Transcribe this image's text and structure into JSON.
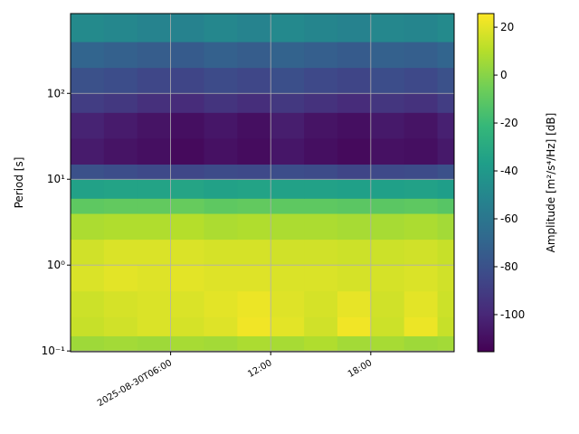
{
  "chart_data": {
    "type": "heatmap",
    "ylabel": "Period [s]",
    "colorbar_label": "Amplitude [m²/s⁴/Hz] [dB]",
    "colormap": "viridis",
    "ylog": true,
    "grid": true,
    "xlim": [
      0,
      23
    ],
    "xticks": [
      {
        "value": 6,
        "label": "2025-08-30T06:00"
      },
      {
        "value": 12,
        "label": "12:00"
      },
      {
        "value": 18,
        "label": "18:00"
      }
    ],
    "ylim": [
      0.098,
      850
    ],
    "yticks": [
      {
        "value": 0.1,
        "label": "10⁻¹"
      },
      {
        "value": 1,
        "label": "10⁰"
      },
      {
        "value": 10,
        "label": "10¹"
      },
      {
        "value": 100,
        "label": "10²"
      }
    ],
    "clim": [
      -115.5,
      25.7
    ],
    "cticks": [
      20,
      0,
      -20,
      -40,
      -60,
      -80,
      -100
    ],
    "xbins": [
      0,
      2,
      4,
      6,
      8,
      10,
      12,
      14,
      16,
      18,
      20,
      22,
      23
    ],
    "ybins": [
      0.098,
      0.15,
      0.25,
      0.5,
      1,
      2,
      4,
      6,
      10,
      15,
      30,
      60,
      100,
      200,
      400,
      850
    ],
    "z": [
      [
        5,
        6,
        5,
        7,
        6,
        8,
        7,
        9,
        6,
        7,
        5,
        6
      ],
      [
        14,
        16,
        18,
        17,
        19,
        23,
        20,
        16,
        23,
        15,
        22,
        14
      ],
      [
        15,
        17,
        18,
        18,
        20,
        22,
        19,
        17,
        21,
        16,
        20,
        15
      ],
      [
        18,
        20,
        19,
        20,
        19,
        19,
        18,
        18,
        17,
        17,
        18,
        16
      ],
      [
        16,
        18,
        18,
        18,
        17,
        17,
        16,
        16,
        15,
        15,
        16,
        14
      ],
      [
        8,
        9,
        9,
        10,
        8,
        9,
        8,
        8,
        7,
        7,
        8,
        6
      ],
      [
        -10,
        -9,
        -9,
        -8,
        -10,
        -9,
        -10,
        -10,
        -11,
        -11,
        -10,
        -12
      ],
      [
        -35,
        -34,
        -34,
        -33,
        -35,
        -34,
        -35,
        -35,
        -36,
        -36,
        -35,
        -37
      ],
      [
        -80,
        -82,
        -84,
        -85,
        -83,
        -84,
        -82,
        -83,
        -86,
        -84,
        -83,
        -80
      ],
      [
        -105,
        -108,
        -110,
        -112,
        -109,
        -111,
        -107,
        -110,
        -112,
        -109,
        -110,
        -106
      ],
      [
        -102,
        -105,
        -108,
        -110,
        -107,
        -110,
        -104,
        -108,
        -110,
        -106,
        -108,
        -103
      ],
      [
        -90,
        -92,
        -96,
        -98,
        -94,
        -97,
        -92,
        -95,
        -98,
        -93,
        -95,
        -90
      ],
      [
        -80,
        -82,
        -85,
        -86,
        -83,
        -85,
        -81,
        -84,
        -86,
        -82,
        -84,
        -80
      ],
      [
        -70,
        -72,
        -74,
        -75,
        -72,
        -74,
        -71,
        -73,
        -75,
        -72,
        -73,
        -70
      ],
      [
        -48,
        -50,
        -52,
        -53,
        -50,
        -52,
        -49,
        -51,
        -53,
        -50,
        -51,
        -48
      ]
    ]
  }
}
